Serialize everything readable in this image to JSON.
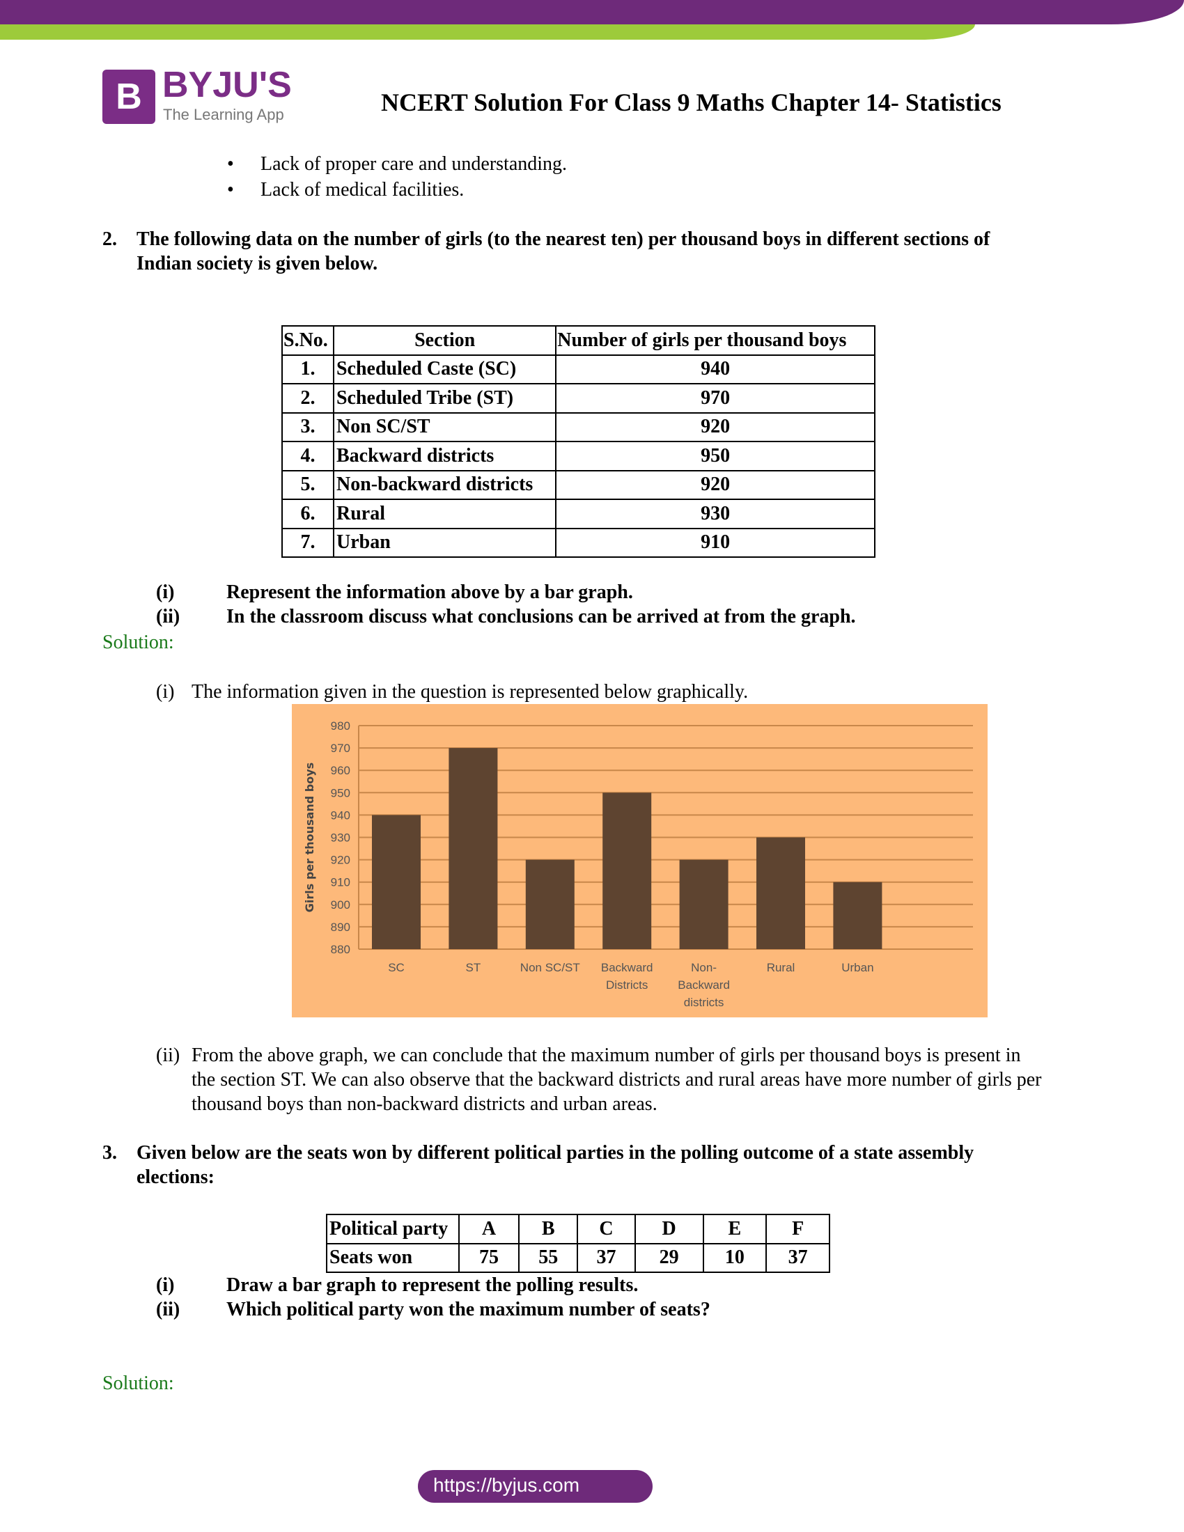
{
  "header": {
    "brand": "BYJU'S",
    "tagline": "The Learning App",
    "title": "NCERT Solution For Class 9 Maths Chapter 14- Statistics",
    "colors": {
      "purple": "#6e2a7a",
      "green": "#9dcb3b"
    }
  },
  "bullets": [
    "Lack of proper care and understanding.",
    "Lack of medical facilities."
  ],
  "q2": {
    "number": "2.",
    "text_line1": "The following data on the number of girls (to the nearest ten) per thousand boys in different sections of",
    "text_line2": "Indian society is given below.",
    "table": {
      "headers": [
        "S.No.",
        "Section",
        "Number of girls per thousand boys"
      ],
      "rows": [
        [
          "1.",
          "Scheduled Caste (SC)",
          "940"
        ],
        [
          "2.",
          "Scheduled Tribe (ST)",
          "970"
        ],
        [
          "3.",
          "Non SC/ST",
          "920"
        ],
        [
          "4.",
          "Backward districts",
          "950"
        ],
        [
          "5.",
          "Non-backward districts",
          "920"
        ],
        [
          "6.",
          "Rural",
          "930"
        ],
        [
          "7.",
          "Urban",
          "910"
        ]
      ]
    },
    "parts": [
      {
        "label": "(i)",
        "text": "Represent the information above by a bar graph."
      },
      {
        "label": "(ii)",
        "text": "In the classroom discuss what conclusions can be arrived at from the graph."
      }
    ],
    "solution_label": "Solution:",
    "sol_i": {
      "label": "(i)",
      "text": "The information given in the question is represented below graphically."
    },
    "sol_ii": {
      "label": "(ii)",
      "lines": [
        "From the above graph, we can conclude that the maximum number of girls per thousand boys is present in",
        "the section ST. We can also observe that the backward districts and rural areas have more number of girls per",
        "thousand boys than non-backward districts and urban areas."
      ]
    }
  },
  "chart_data": {
    "type": "bar",
    "categories": [
      [
        "SC"
      ],
      [
        "ST"
      ],
      [
        "Non SC/ST"
      ],
      [
        "Backward",
        "Districts"
      ],
      [
        "Non-",
        "Backward",
        "districts"
      ],
      [
        "Rural"
      ],
      [
        "Urban"
      ]
    ],
    "values": [
      940,
      970,
      920,
      950,
      920,
      930,
      910
    ],
    "ylabel": "Girls per thousand boys",
    "ylim": [
      880,
      980
    ],
    "yticks": [
      880,
      890,
      900,
      910,
      920,
      930,
      940,
      950,
      960,
      970,
      980
    ],
    "grid": true,
    "colors": {
      "background": "#fdb97a",
      "bar": "#5e4430",
      "grid": "#c8874a"
    }
  },
  "q3": {
    "number": "3.",
    "text_line1": "Given below are the seats won by different political parties in the polling outcome of a state assembly",
    "text_line2": "elections:",
    "table": {
      "row1": [
        "Political party",
        "A",
        "B",
        "C",
        "D",
        "E",
        "F"
      ],
      "row2": [
        "Seats won",
        "75",
        "55",
        "37",
        "29",
        "10",
        "37"
      ]
    },
    "parts": [
      {
        "label": "(i)",
        "text": "Draw a bar graph to represent the polling results."
      },
      {
        "label": "(ii)",
        "text": "Which political party won the maximum number of seats?"
      }
    ],
    "solution_label": "Solution:"
  },
  "footer": {
    "url": "https://byjus.com"
  }
}
